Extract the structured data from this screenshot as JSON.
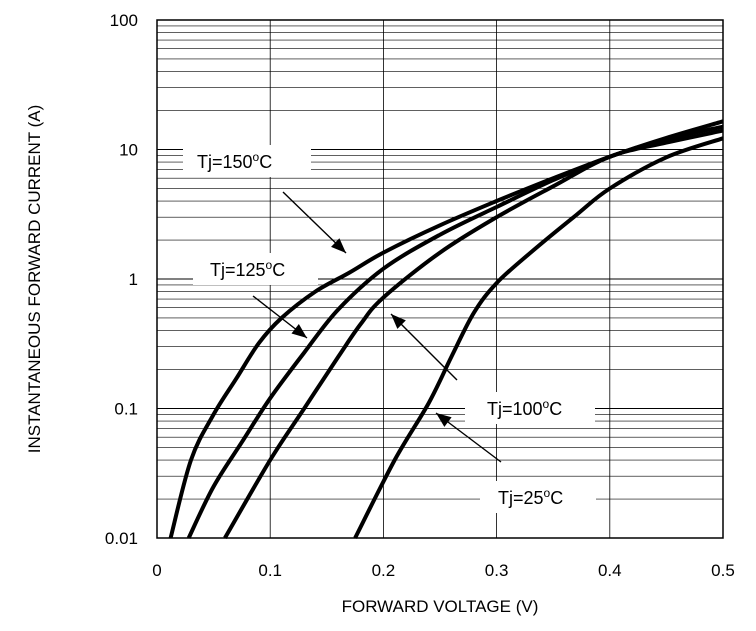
{
  "chart_data": {
    "type": "line",
    "title": "",
    "xlabel": "FORWARD VOLTAGE (V)",
    "ylabel": "INSTANTANEOUS FORWARD CURRENT (A)",
    "xlim": [
      0,
      0.5
    ],
    "ylim": [
      0.01,
      100
    ],
    "yscale": "log",
    "grid": true,
    "x_ticks": [
      "0",
      "0.1",
      "0.2",
      "0.3",
      "0.4",
      "0.5"
    ],
    "y_ticks": [
      "0.01",
      "0.1",
      "1",
      "10",
      "100"
    ],
    "series": [
      {
        "name": "Tj=150°C",
        "label_parts": {
          "prefix": "Tj=150",
          "sup": "o",
          "suffix": "C"
        },
        "x": [
          0.012,
          0.03,
          0.05,
          0.07,
          0.09,
          0.11,
          0.14,
          0.17,
          0.2,
          0.25,
          0.3,
          0.35,
          0.4,
          0.45,
          0.5
        ],
        "y": [
          0.01,
          0.04,
          0.09,
          0.17,
          0.32,
          0.5,
          0.8,
          1.12,
          1.6,
          2.6,
          4.0,
          6.0,
          8.8,
          12.3,
          16.5
        ]
      },
      {
        "name": "Tj=125°C",
        "label_parts": {
          "prefix": "Tj=125",
          "sup": "o",
          "suffix": "C"
        },
        "x": [
          0.028,
          0.05,
          0.075,
          0.1,
          0.13,
          0.16,
          0.2,
          0.25,
          0.3,
          0.35,
          0.4,
          0.45,
          0.5
        ],
        "y": [
          0.01,
          0.025,
          0.055,
          0.12,
          0.27,
          0.58,
          1.2,
          2.2,
          3.6,
          5.8,
          8.8,
          12.0,
          15.0
        ]
      },
      {
        "name": "Tj=100°C",
        "label_parts": {
          "prefix": "Tj=100",
          "sup": "o",
          "suffix": "C"
        },
        "x": [
          0.06,
          0.1,
          0.13,
          0.16,
          0.18,
          0.2,
          0.25,
          0.3,
          0.35,
          0.4,
          0.45,
          0.5
        ],
        "y": [
          0.01,
          0.04,
          0.1,
          0.25,
          0.45,
          0.72,
          1.6,
          3.0,
          5.2,
          8.8,
          11.3,
          14.0
        ]
      },
      {
        "name": "Tj=25°C",
        "label_parts": {
          "prefix": "Tj=25",
          "sup": "o",
          "suffix": "C"
        },
        "x": [
          0.175,
          0.21,
          0.24,
          0.26,
          0.28,
          0.3,
          0.33,
          0.37,
          0.4,
          0.45,
          0.5
        ],
        "y": [
          0.01,
          0.04,
          0.11,
          0.25,
          0.55,
          0.93,
          1.6,
          3.1,
          5.0,
          8.7,
          12.2
        ]
      }
    ]
  }
}
